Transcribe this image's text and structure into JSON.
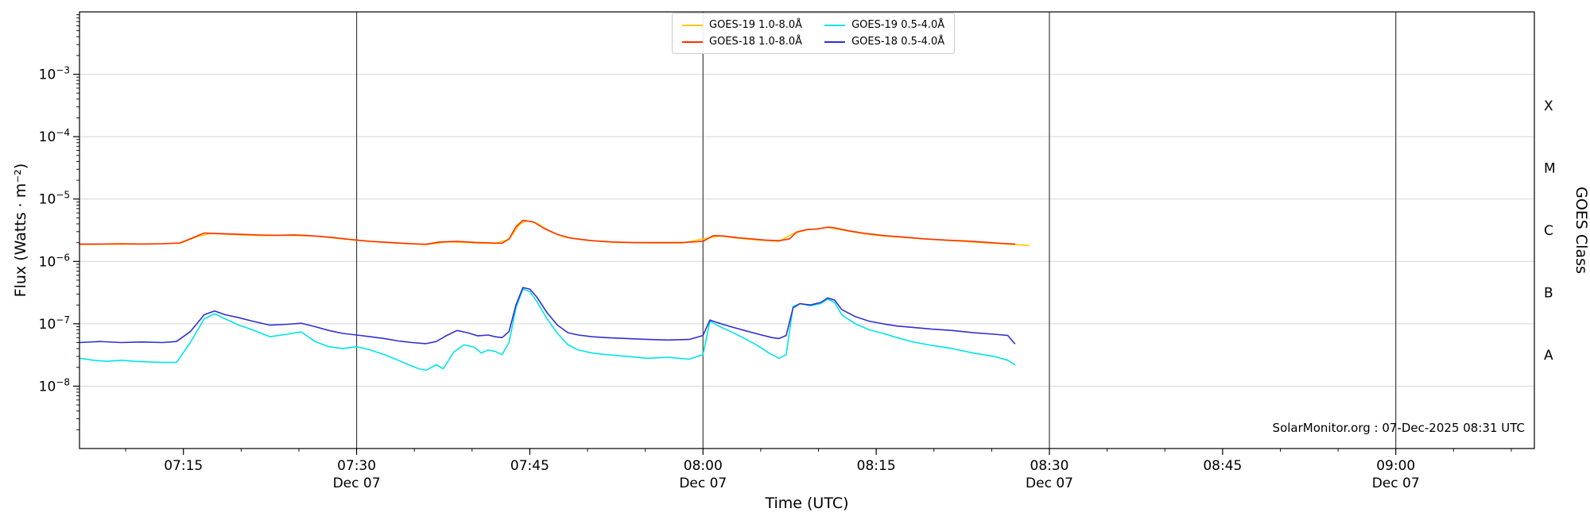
{
  "footer": {
    "credit": "SolarMonitor.org : 07-Dec-2025 08:31 UTC"
  },
  "chart_data": {
    "type": "line",
    "title": "",
    "xlabel": "Time (UTC)",
    "ylabel_left": "Flux (Watts · m⁻²)",
    "ylabel_right": "GOES Class",
    "x_unit": "decimal_hours_utc",
    "xlim": [
      7.1,
      9.2
    ],
    "ylim_exp": [
      -9,
      -2
    ],
    "grid_on": true,
    "grid_color": "#d7d7d7",
    "dayline_color": "#3d3d3d",
    "axis_color": "#000000",
    "y_major_tick_exponents": [
      -3,
      -4,
      -5,
      -6,
      -7,
      -8
    ],
    "goes_classes": [
      {
        "label": "X",
        "exp": -3.5
      },
      {
        "label": "M",
        "exp": -4.5
      },
      {
        "label": "C",
        "exp": -5.5
      },
      {
        "label": "B",
        "exp": -6.5
      },
      {
        "label": "A",
        "exp": -7.5
      }
    ],
    "x_major_ticks": [
      {
        "hours": 7.25,
        "label": "07:15"
      },
      {
        "hours": 7.5,
        "label": "07:30",
        "sublabel": "Dec 07",
        "dayline": true
      },
      {
        "hours": 7.75,
        "label": "07:45"
      },
      {
        "hours": 8.0,
        "label": "08:00",
        "sublabel": "Dec 07",
        "dayline": true
      },
      {
        "hours": 8.25,
        "label": "08:15"
      },
      {
        "hours": 8.5,
        "label": "08:30",
        "sublabel": "Dec 07",
        "dayline": true
      },
      {
        "hours": 8.75,
        "label": "08:45"
      },
      {
        "hours": 9.0,
        "label": "09:00",
        "sublabel": "Dec 07",
        "dayline": true
      }
    ],
    "x_minor_step_minutes": 5,
    "legend": {
      "position": "top-center",
      "entries": [
        {
          "label": "GOES-19 1.0-8.0Å",
          "color": "#ffc400"
        },
        {
          "label": "GOES-18 1.0-8.0Å",
          "color": "#ff3000"
        },
        {
          "label": "GOES-19 0.5-4.0Å",
          "color": "#00e5e5"
        },
        {
          "label": "GOES-18 0.5-4.0Å",
          "color": "#3030d0"
        }
      ]
    },
    "series": [
      {
        "name": "GOES-19 1.0-8.0Å",
        "color": "#ffc400",
        "points": [
          [
            7.1,
            1.87e-06
          ],
          [
            7.15,
            1.88e-06
          ],
          [
            7.2,
            1.9e-06
          ],
          [
            7.245,
            1.95e-06
          ],
          [
            7.27,
            2.5e-06
          ],
          [
            7.29,
            2.8e-06
          ],
          [
            7.32,
            2.7e-06
          ],
          [
            7.36,
            2.6e-06
          ],
          [
            7.4,
            2.62e-06
          ],
          [
            7.44,
            2.55e-06
          ],
          [
            7.48,
            2.3e-06
          ],
          [
            7.52,
            2.08e-06
          ],
          [
            7.56,
            1.95e-06
          ],
          [
            7.6,
            1.86e-06
          ],
          [
            7.63,
            2.05e-06
          ],
          [
            7.66,
            2e-06
          ],
          [
            7.7,
            1.93e-06
          ],
          [
            7.72,
            2.25e-06
          ],
          [
            7.735,
            3.9e-06
          ],
          [
            7.745,
            4.5e-06
          ],
          [
            7.76,
            4.1e-06
          ],
          [
            7.78,
            3e-06
          ],
          [
            7.8,
            2.45e-06
          ],
          [
            7.83,
            2.2e-06
          ],
          [
            7.87,
            2.02e-06
          ],
          [
            7.92,
            1.97e-06
          ],
          [
            7.97,
            1.97e-06
          ],
          [
            8.01,
            2.4e-06
          ],
          [
            8.025,
            2.55e-06
          ],
          [
            8.05,
            2.35e-06
          ],
          [
            8.08,
            2.2e-06
          ],
          [
            8.11,
            2.1e-06
          ],
          [
            8.13,
            2.8e-06
          ],
          [
            8.15,
            3.2e-06
          ],
          [
            8.18,
            3.5e-06
          ],
          [
            8.2,
            3.2e-06
          ],
          [
            8.23,
            2.8e-06
          ],
          [
            8.26,
            2.55e-06
          ],
          [
            8.3,
            2.38e-06
          ],
          [
            8.34,
            2.22e-06
          ],
          [
            8.38,
            2.08e-06
          ],
          [
            8.42,
            1.95e-06
          ],
          [
            8.45,
            1.86e-06
          ],
          [
            8.47,
            1.8e-06
          ]
        ]
      },
      {
        "name": "GOES-19 0.5-4.0Å",
        "color": "#00e5e5",
        "points": [
          [
            7.1,
            2.8e-08
          ],
          [
            7.12,
            2.6e-08
          ],
          [
            7.14,
            2.5e-08
          ],
          [
            7.16,
            2.6e-08
          ],
          [
            7.18,
            2.5e-08
          ],
          [
            7.2,
            2.45e-08
          ],
          [
            7.22,
            2.4e-08
          ],
          [
            7.24,
            2.4e-08
          ],
          [
            7.26,
            5e-08
          ],
          [
            7.28,
            1.2e-07
          ],
          [
            7.295,
            1.45e-07
          ],
          [
            7.31,
            1.2e-07
          ],
          [
            7.33,
            9.5e-08
          ],
          [
            7.35,
            8e-08
          ],
          [
            7.375,
            6.2e-08
          ],
          [
            7.4,
            6.8e-08
          ],
          [
            7.42,
            7.4e-08
          ],
          [
            7.44,
            5.2e-08
          ],
          [
            7.46,
            4.3e-08
          ],
          [
            7.48,
            4e-08
          ],
          [
            7.5,
            4.3e-08
          ],
          [
            7.52,
            3.8e-08
          ],
          [
            7.54,
            3.2e-08
          ],
          [
            7.56,
            2.6e-08
          ],
          [
            7.575,
            2.2e-08
          ],
          [
            7.59,
            1.9e-08
          ],
          [
            7.6,
            1.8e-08
          ],
          [
            7.615,
            2.2e-08
          ],
          [
            7.625,
            1.9e-08
          ],
          [
            7.64,
            3.5e-08
          ],
          [
            7.655,
            4.6e-08
          ],
          [
            7.67,
            4.2e-08
          ],
          [
            7.68,
            3.4e-08
          ],
          [
            7.69,
            3.8e-08
          ],
          [
            7.7,
            3.6e-08
          ],
          [
            7.71,
            3.2e-08
          ],
          [
            7.72,
            5e-08
          ],
          [
            7.73,
            1.8e-07
          ],
          [
            7.74,
            3.6e-07
          ],
          [
            7.75,
            3.3e-07
          ],
          [
            7.76,
            2.3e-07
          ],
          [
            7.775,
            1.2e-07
          ],
          [
            7.79,
            7e-08
          ],
          [
            7.805,
            4.6e-08
          ],
          [
            7.82,
            3.8e-08
          ],
          [
            7.84,
            3.4e-08
          ],
          [
            7.86,
            3.2e-08
          ],
          [
            7.89,
            3e-08
          ],
          [
            7.92,
            2.8e-08
          ],
          [
            7.95,
            2.9e-08
          ],
          [
            7.98,
            2.7e-08
          ],
          [
            8.0,
            3.2e-08
          ],
          [
            8.01,
            1.1e-07
          ],
          [
            8.02,
            9.5e-08
          ],
          [
            8.04,
            7.5e-08
          ],
          [
            8.06,
            5.8e-08
          ],
          [
            8.08,
            4.4e-08
          ],
          [
            8.095,
            3.4e-08
          ],
          [
            8.11,
            2.8e-08
          ],
          [
            8.12,
            3.2e-08
          ],
          [
            8.13,
            1.9e-07
          ],
          [
            8.14,
            2.1e-07
          ],
          [
            8.155,
            1.95e-07
          ],
          [
            8.17,
            2.1e-07
          ],
          [
            8.18,
            2.5e-07
          ],
          [
            8.19,
            2.2e-07
          ],
          [
            8.2,
            1.4e-07
          ],
          [
            8.22,
            1e-07
          ],
          [
            8.24,
            8e-08
          ],
          [
            8.26,
            7e-08
          ],
          [
            8.28,
            6e-08
          ],
          [
            8.3,
            5.2e-08
          ],
          [
            8.33,
            4.5e-08
          ],
          [
            8.36,
            4e-08
          ],
          [
            8.39,
            3.4e-08
          ],
          [
            8.42,
            3e-08
          ],
          [
            8.44,
            2.6e-08
          ],
          [
            8.45,
            2.2e-08
          ]
        ]
      },
      {
        "name": "GOES-18 0.5-4.0Å",
        "color": "#3030d0",
        "points": [
          [
            7.1,
            5e-08
          ],
          [
            7.13,
            5.2e-08
          ],
          [
            7.16,
            5e-08
          ],
          [
            7.19,
            5.1e-08
          ],
          [
            7.22,
            5e-08
          ],
          [
            7.24,
            5.2e-08
          ],
          [
            7.26,
            7.5e-08
          ],
          [
            7.28,
            1.4e-07
          ],
          [
            7.295,
            1.6e-07
          ],
          [
            7.31,
            1.4e-07
          ],
          [
            7.33,
            1.25e-07
          ],
          [
            7.35,
            1.1e-07
          ],
          [
            7.375,
            9.5e-08
          ],
          [
            7.4,
            9.8e-08
          ],
          [
            7.42,
            1.02e-07
          ],
          [
            7.44,
            9e-08
          ],
          [
            7.46,
            7.8e-08
          ],
          [
            7.48,
            7e-08
          ],
          [
            7.5,
            6.6e-08
          ],
          [
            7.52,
            6.2e-08
          ],
          [
            7.54,
            5.8e-08
          ],
          [
            7.56,
            5.3e-08
          ],
          [
            7.58,
            5e-08
          ],
          [
            7.6,
            4.8e-08
          ],
          [
            7.615,
            5.2e-08
          ],
          [
            7.63,
            6.5e-08
          ],
          [
            7.645,
            7.8e-08
          ],
          [
            7.66,
            7.2e-08
          ],
          [
            7.675,
            6.4e-08
          ],
          [
            7.69,
            6.6e-08
          ],
          [
            7.7,
            6.2e-08
          ],
          [
            7.71,
            6e-08
          ],
          [
            7.72,
            7.5e-08
          ],
          [
            7.73,
            2e-07
          ],
          [
            7.74,
            3.8e-07
          ],
          [
            7.75,
            3.6e-07
          ],
          [
            7.76,
            2.7e-07
          ],
          [
            7.775,
            1.5e-07
          ],
          [
            7.79,
            9.5e-08
          ],
          [
            7.805,
            7.2e-08
          ],
          [
            7.82,
            6.6e-08
          ],
          [
            7.84,
            6.2e-08
          ],
          [
            7.86,
            6e-08
          ],
          [
            7.89,
            5.8e-08
          ],
          [
            7.92,
            5.6e-08
          ],
          [
            7.95,
            5.5e-08
          ],
          [
            7.98,
            5.6e-08
          ],
          [
            8.0,
            6.5e-08
          ],
          [
            8.01,
            1.15e-07
          ],
          [
            8.02,
            1.05e-07
          ],
          [
            8.04,
            9e-08
          ],
          [
            8.06,
            7.8e-08
          ],
          [
            8.08,
            6.8e-08
          ],
          [
            8.1,
            6e-08
          ],
          [
            8.11,
            5.8e-08
          ],
          [
            8.12,
            6.5e-08
          ],
          [
            8.13,
            1.8e-07
          ],
          [
            8.14,
            2.1e-07
          ],
          [
            8.155,
            2e-07
          ],
          [
            8.17,
            2.2e-07
          ],
          [
            8.18,
            2.6e-07
          ],
          [
            8.19,
            2.4e-07
          ],
          [
            8.2,
            1.7e-07
          ],
          [
            8.22,
            1.3e-07
          ],
          [
            8.24,
            1.1e-07
          ],
          [
            8.26,
            1e-07
          ],
          [
            8.28,
            9.2e-08
          ],
          [
            8.3,
            8.8e-08
          ],
          [
            8.33,
            8.2e-08
          ],
          [
            8.36,
            7.8e-08
          ],
          [
            8.39,
            7.2e-08
          ],
          [
            8.42,
            6.8e-08
          ],
          [
            8.44,
            6.5e-08
          ],
          [
            8.45,
            4.8e-08
          ]
        ]
      },
      {
        "name": "GOES-18 1.0-8.0Å",
        "color": "#ff3000",
        "points": [
          [
            7.1,
            1.9e-06
          ],
          [
            7.13,
            1.9e-06
          ],
          [
            7.16,
            1.92e-06
          ],
          [
            7.19,
            1.9e-06
          ],
          [
            7.22,
            1.92e-06
          ],
          [
            7.245,
            1.98e-06
          ],
          [
            7.26,
            2.3e-06
          ],
          [
            7.28,
            2.85e-06
          ],
          [
            7.3,
            2.8e-06
          ],
          [
            7.33,
            2.72e-06
          ],
          [
            7.36,
            2.65e-06
          ],
          [
            7.385,
            2.62e-06
          ],
          [
            7.41,
            2.66e-06
          ],
          [
            7.43,
            2.6e-06
          ],
          [
            7.46,
            2.45e-06
          ],
          [
            7.49,
            2.25e-06
          ],
          [
            7.52,
            2.1e-06
          ],
          [
            7.55,
            2e-06
          ],
          [
            7.58,
            1.92e-06
          ],
          [
            7.6,
            1.88e-06
          ],
          [
            7.62,
            2.05e-06
          ],
          [
            7.645,
            2.1e-06
          ],
          [
            7.67,
            2.02e-06
          ],
          [
            7.695,
            1.98e-06
          ],
          [
            7.71,
            1.95e-06
          ],
          [
            7.72,
            2.3e-06
          ],
          [
            7.73,
            3.6e-06
          ],
          [
            7.74,
            4.55e-06
          ],
          [
            7.755,
            4.3e-06
          ],
          [
            7.77,
            3.4e-06
          ],
          [
            7.79,
            2.7e-06
          ],
          [
            7.81,
            2.35e-06
          ],
          [
            7.84,
            2.15e-06
          ],
          [
            7.87,
            2.05e-06
          ],
          [
            7.9,
            2e-06
          ],
          [
            7.94,
            2e-06
          ],
          [
            7.97,
            2e-06
          ],
          [
            8.0,
            2.1e-06
          ],
          [
            8.015,
            2.6e-06
          ],
          [
            8.03,
            2.55e-06
          ],
          [
            8.05,
            2.4e-06
          ],
          [
            8.07,
            2.3e-06
          ],
          [
            8.09,
            2.2e-06
          ],
          [
            8.11,
            2.15e-06
          ],
          [
            8.125,
            2.3e-06
          ],
          [
            8.135,
            2.95e-06
          ],
          [
            8.15,
            3.25e-06
          ],
          [
            8.165,
            3.3e-06
          ],
          [
            8.18,
            3.55e-06
          ],
          [
            8.19,
            3.45e-06
          ],
          [
            8.21,
            3.1e-06
          ],
          [
            8.23,
            2.85e-06
          ],
          [
            8.26,
            2.6e-06
          ],
          [
            8.29,
            2.45e-06
          ],
          [
            8.32,
            2.3e-06
          ],
          [
            8.35,
            2.2e-06
          ],
          [
            8.38,
            2.12e-06
          ],
          [
            8.41,
            2.02e-06
          ],
          [
            8.43,
            1.95e-06
          ],
          [
            8.45,
            1.9e-06
          ]
        ]
      }
    ]
  }
}
